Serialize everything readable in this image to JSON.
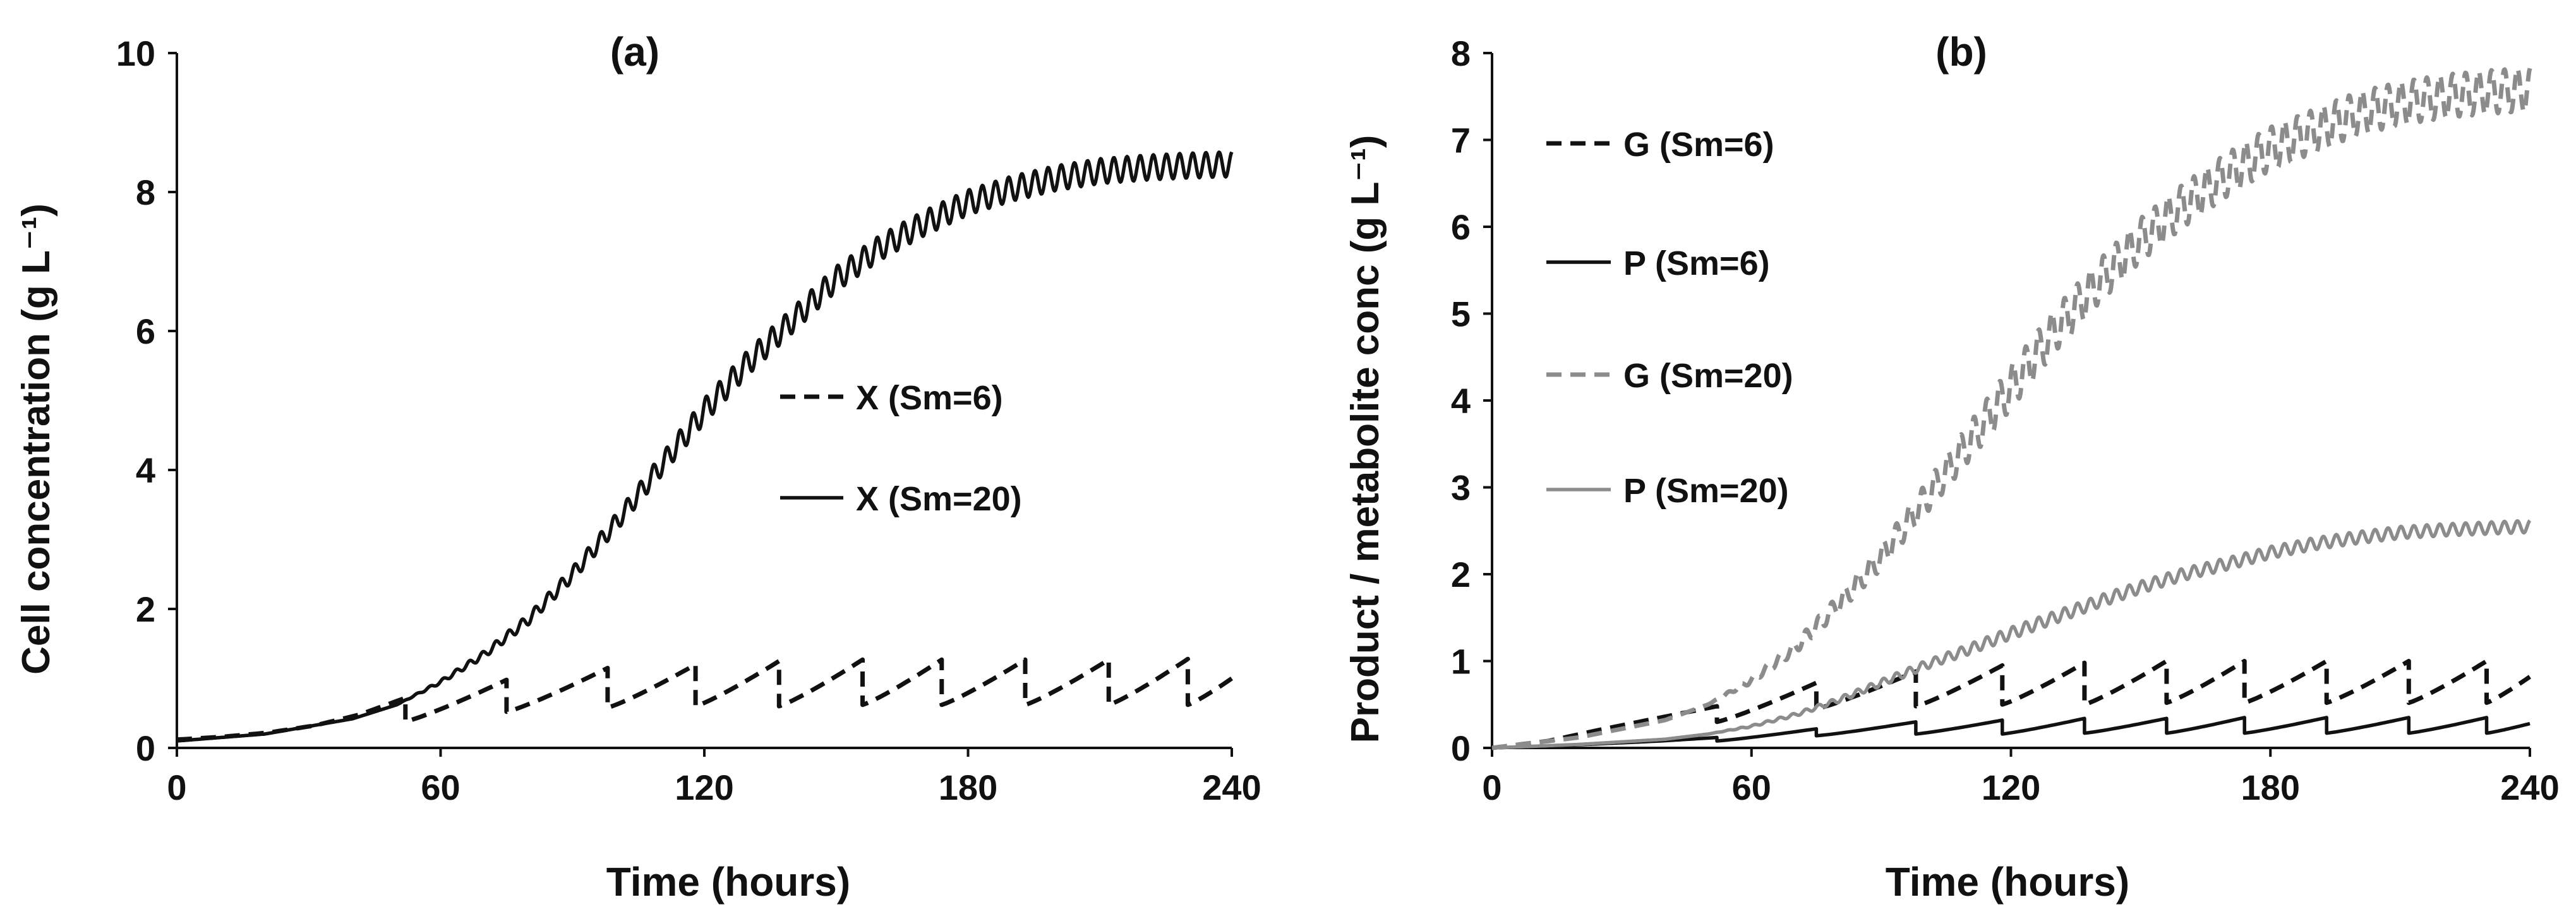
{
  "chart_data": [
    {
      "type": "line",
      "title": "(a)",
      "xlabel": "Time (hours)",
      "ylabel": "Cell concentration (g L⁻¹)",
      "xlim": [
        0,
        240
      ],
      "ylim": [
        0,
        10
      ],
      "xticks": [
        "0",
        "60",
        "120",
        "180",
        "240"
      ],
      "yticks": [
        "0",
        "2",
        "4",
        "6",
        "8",
        "10"
      ],
      "series": [
        {
          "name": "X (Sm=6)",
          "color": "#111111",
          "style": "dashed",
          "feed_times": [
            52,
            75,
            98,
            118,
            137,
            156,
            174,
            193,
            212,
            230
          ],
          "baseline_before_feed": [
            0.12,
            0.16,
            0.22,
            0.32,
            0.48,
            0.72
          ],
          "sawtooth": [
            {
              "t0": 52,
              "t1": 75,
              "y0": 0.38,
              "y1": 0.98
            },
            {
              "t0": 75,
              "t1": 98,
              "y0": 0.52,
              "y1": 1.15
            },
            {
              "t0": 98,
              "t1": 118,
              "y0": 0.58,
              "y1": 1.2
            },
            {
              "t0": 118,
              "t1": 137,
              "y0": 0.6,
              "y1": 1.25
            },
            {
              "t0": 137,
              "t1": 156,
              "y0": 0.6,
              "y1": 1.27
            },
            {
              "t0": 156,
              "t1": 174,
              "y0": 0.62,
              "y1": 1.27
            },
            {
              "t0": 174,
              "t1": 193,
              "y0": 0.62,
              "y1": 1.27
            },
            {
              "t0": 193,
              "t1": 212,
              "y0": 0.62,
              "y1": 1.27
            },
            {
              "t0": 212,
              "t1": 230,
              "y0": 0.62,
              "y1": 1.28
            },
            {
              "t0": 230,
              "t1": 240,
              "y0": 0.62,
              "y1": 1.0
            }
          ]
        },
        {
          "name": "X (Sm=20)",
          "color": "#111111",
          "style": "solid",
          "x": [
            0,
            20,
            40,
            50,
            60,
            70,
            80,
            90,
            100,
            110,
            120,
            130,
            140,
            150,
            160,
            170,
            180,
            190,
            200,
            210,
            220,
            230,
            240
          ],
          "y": [
            0.1,
            0.2,
            0.42,
            0.62,
            0.95,
            1.35,
            1.85,
            2.5,
            3.25,
            4.05,
            4.85,
            5.55,
            6.15,
            6.75,
            7.2,
            7.55,
            7.85,
            8.05,
            8.2,
            8.3,
            8.35,
            8.38,
            8.4
          ],
          "oscillation_amplitude": 0.18
        }
      ]
    },
    {
      "type": "line",
      "title": "(b)",
      "xlabel": "Time (hours)",
      "ylabel": "Product  / metabolite conc (g L⁻¹)",
      "xlim": [
        0,
        240
      ],
      "ylim": [
        0,
        8
      ],
      "xticks": [
        "0",
        "60",
        "120",
        "180",
        "240"
      ],
      "yticks": [
        "0",
        "1",
        "2",
        "3",
        "4",
        "5",
        "6",
        "7",
        "8"
      ],
      "series": [
        {
          "name": "G (Sm=6)",
          "color": "#111111",
          "style": "dashed",
          "baseline_before_feed": [
            0.0,
            0.08,
            0.22,
            0.35,
            0.48
          ],
          "sawtooth": [
            {
              "t0": 52,
              "t1": 75,
              "y0": 0.3,
              "y1": 0.75
            },
            {
              "t0": 75,
              "t1": 98,
              "y0": 0.45,
              "y1": 0.88
            },
            {
              "t0": 98,
              "t1": 118,
              "y0": 0.48,
              "y1": 0.95
            },
            {
              "t0": 118,
              "t1": 137,
              "y0": 0.5,
              "y1": 0.98
            },
            {
              "t0": 137,
              "t1": 156,
              "y0": 0.5,
              "y1": 1.0
            },
            {
              "t0": 156,
              "t1": 174,
              "y0": 0.52,
              "y1": 1.0
            },
            {
              "t0": 174,
              "t1": 193,
              "y0": 0.52,
              "y1": 1.0
            },
            {
              "t0": 193,
              "t1": 212,
              "y0": 0.52,
              "y1": 1.0
            },
            {
              "t0": 212,
              "t1": 230,
              "y0": 0.52,
              "y1": 1.0
            },
            {
              "t0": 230,
              "t1": 240,
              "y0": 0.52,
              "y1": 0.82
            }
          ]
        },
        {
          "name": "P (Sm=6)",
          "color": "#111111",
          "style": "solid",
          "baseline_before_feed": [
            0.0,
            0.02,
            0.05,
            0.08,
            0.12
          ],
          "sawtooth": [
            {
              "t0": 52,
              "t1": 75,
              "y0": 0.08,
              "y1": 0.22
            },
            {
              "t0": 75,
              "t1": 98,
              "y0": 0.14,
              "y1": 0.3
            },
            {
              "t0": 98,
              "t1": 118,
              "y0": 0.16,
              "y1": 0.32
            },
            {
              "t0": 118,
              "t1": 137,
              "y0": 0.16,
              "y1": 0.34
            },
            {
              "t0": 137,
              "t1": 156,
              "y0": 0.17,
              "y1": 0.34
            },
            {
              "t0": 156,
              "t1": 174,
              "y0": 0.17,
              "y1": 0.35
            },
            {
              "t0": 174,
              "t1": 193,
              "y0": 0.17,
              "y1": 0.35
            },
            {
              "t0": 193,
              "t1": 212,
              "y0": 0.17,
              "y1": 0.35
            },
            {
              "t0": 212,
              "t1": 230,
              "y0": 0.17,
              "y1": 0.35
            },
            {
              "t0": 230,
              "t1": 240,
              "y0": 0.17,
              "y1": 0.28
            }
          ]
        },
        {
          "name": "G (Sm=20)",
          "color": "#8c8c8c",
          "style": "dashed",
          "x": [
            0,
            20,
            40,
            50,
            60,
            70,
            80,
            90,
            100,
            110,
            120,
            130,
            140,
            150,
            160,
            170,
            180,
            190,
            200,
            210,
            220,
            230,
            240
          ],
          "y": [
            0.0,
            0.12,
            0.32,
            0.5,
            0.78,
            1.15,
            1.65,
            2.2,
            2.85,
            3.5,
            4.15,
            4.8,
            5.35,
            5.85,
            6.25,
            6.6,
            6.9,
            7.1,
            7.3,
            7.42,
            7.5,
            7.55,
            7.58
          ],
          "oscillation_amplitude": 0.25
        },
        {
          "name": "P (Sm=20)",
          "color": "#8c8c8c",
          "style": "solid",
          "x": [
            0,
            20,
            40,
            50,
            60,
            70,
            80,
            90,
            100,
            110,
            120,
            130,
            140,
            150,
            160,
            170,
            180,
            190,
            200,
            210,
            220,
            230,
            240
          ],
          "y": [
            0.0,
            0.04,
            0.1,
            0.16,
            0.25,
            0.38,
            0.55,
            0.75,
            0.95,
            1.13,
            1.32,
            1.5,
            1.68,
            1.85,
            2.0,
            2.12,
            2.25,
            2.35,
            2.42,
            2.48,
            2.51,
            2.53,
            2.55
          ],
          "oscillation_amplitude": 0.07
        }
      ]
    }
  ]
}
